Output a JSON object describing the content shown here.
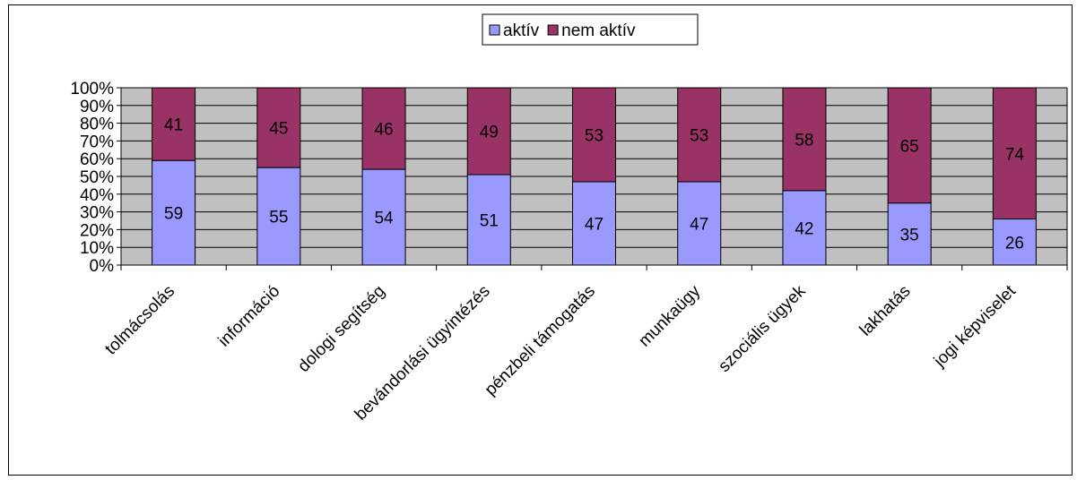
{
  "chart_data": {
    "type": "bar",
    "stacked": "percent",
    "categories": [
      "tolmácsolás",
      "információ",
      "dologi segítség",
      "bevándorlási ügyintézés",
      "pénzbeli támogatás",
      "munkaügy",
      "szociális ügyek",
      "lakhatás",
      "jogi képviselet"
    ],
    "series": [
      {
        "name": "aktív",
        "values": [
          59,
          55,
          54,
          51,
          47,
          47,
          42,
          35,
          26
        ],
        "color": "#9999ff"
      },
      {
        "name": "nem aktív",
        "values": [
          41,
          45,
          46,
          49,
          53,
          53,
          58,
          65,
          74
        ],
        "color": "#993366"
      }
    ],
    "y_ticks": [
      "0%",
      "10%",
      "20%",
      "30%",
      "40%",
      "50%",
      "60%",
      "70%",
      "80%",
      "90%",
      "100%"
    ],
    "ylim": [
      0,
      100
    ],
    "grid": true,
    "plot_background": "#c0c0c0",
    "legend_position": "top"
  }
}
